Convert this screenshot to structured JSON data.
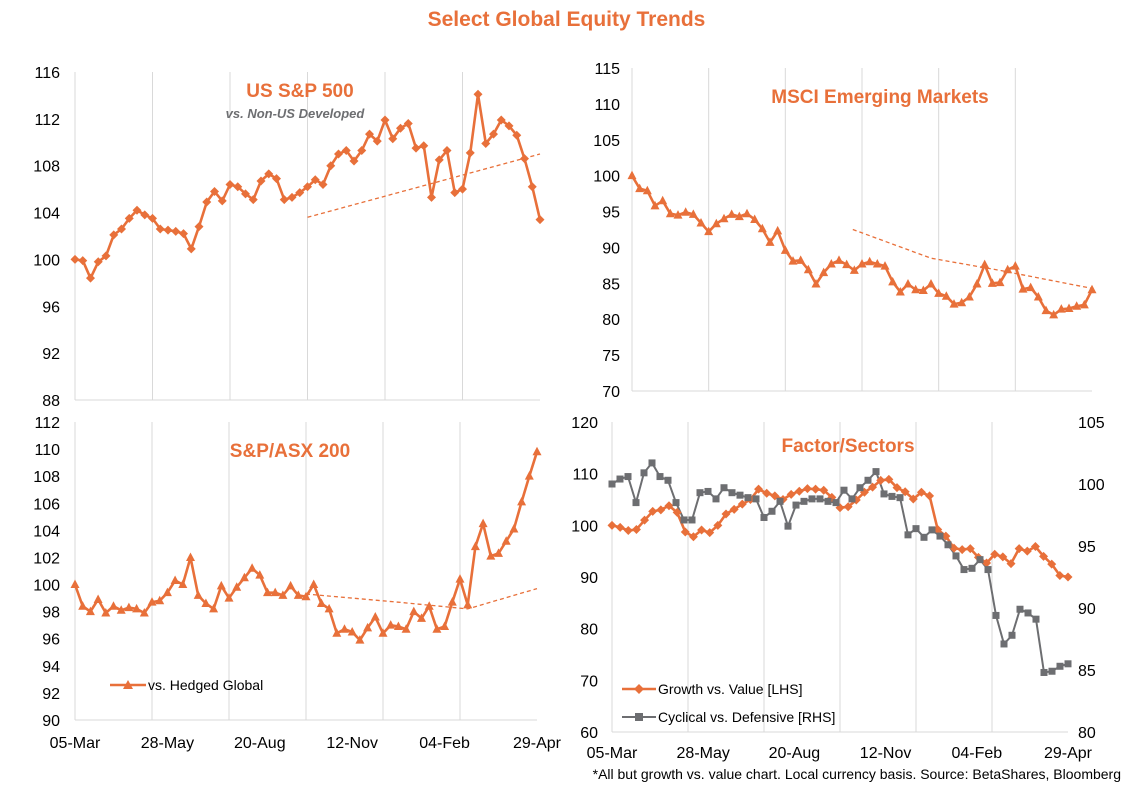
{
  "page": {
    "title": "Select Global Equity Trends",
    "footnote": "*All but growth vs. value chart. Local currency basis. Source: BetaShares, Bloomberg"
  },
  "colors": {
    "orange": "#E8703A",
    "gray": "#6D6E71",
    "grid": "#D9D9D9"
  },
  "chart_data": [
    {
      "id": "sp500",
      "type": "line",
      "title": "US S&P 500",
      "subtitle": "vs. Non-US Developed",
      "ylim": [
        88,
        116
      ],
      "yticks": [
        "88",
        "92",
        "96",
        "100",
        "104",
        "108",
        "112",
        "116"
      ],
      "xlabels": [],
      "series": [
        {
          "name": "",
          "marker": "diamond",
          "color": "#E8703A",
          "values": [
            100.0,
            99.9,
            98.4,
            99.8,
            100.3,
            102.1,
            102.6,
            103.5,
            104.2,
            103.8,
            103.5,
            102.6,
            102.5,
            102.4,
            102.2,
            100.9,
            102.8,
            104.9,
            105.8,
            105.0,
            106.4,
            106.2,
            105.6,
            105.1,
            106.7,
            107.3,
            106.9,
            105.1,
            105.3,
            105.7,
            106.2,
            106.8,
            106.4,
            108.0,
            109.0,
            109.3,
            108.4,
            109.3,
            110.7,
            110.1,
            111.9,
            110.3,
            111.2,
            111.6,
            109.5,
            109.7,
            105.3,
            108.5,
            109.3,
            105.7,
            106.0,
            109.1,
            114.1,
            109.9,
            110.7,
            111.9,
            111.4,
            110.6,
            108.6,
            106.2,
            103.4
          ]
        },
        {
          "name": "",
          "kind": "trend-dashed",
          "x": [
            0.5,
            1.0
          ],
          "values": [
            103.6,
            109.0
          ]
        }
      ]
    },
    {
      "id": "msci-em",
      "type": "line",
      "title": "MSCI Emerging Markets",
      "ylim": [
        70,
        115
      ],
      "yticks": [
        "70",
        "75",
        "80",
        "85",
        "90",
        "95",
        "100",
        "105",
        "110",
        "115"
      ],
      "xlabels": [],
      "series": [
        {
          "name": "",
          "marker": "triangle",
          "color": "#E8703A",
          "values": [
            100.0,
            98.2,
            97.9,
            95.8,
            96.5,
            94.7,
            94.5,
            94.9,
            94.6,
            93.4,
            92.2,
            93.3,
            94.0,
            94.6,
            94.3,
            94.7,
            93.9,
            92.6,
            90.7,
            92.3,
            89.6,
            88.1,
            88.2,
            86.9,
            84.9,
            86.5,
            87.7,
            88.2,
            87.6,
            86.8,
            87.7,
            88.0,
            87.7,
            87.4,
            85.2,
            83.8,
            84.9,
            84.1,
            84.0,
            84.9,
            83.6,
            83.2,
            82.1,
            82.3,
            83.1,
            84.9,
            87.6,
            85.0,
            85.1,
            86.9,
            87.4,
            84.2,
            84.4,
            83.1,
            81.2,
            80.6,
            81.4,
            81.5,
            81.8,
            82.0,
            84.1
          ]
        },
        {
          "name": "",
          "kind": "trend-dashed",
          "x": [
            0.48,
            0.65,
            0.8,
            1.0
          ],
          "values": [
            92.5,
            88.5,
            86.8,
            84.3
          ]
        }
      ]
    },
    {
      "id": "asx200",
      "type": "line",
      "title": "S&P/ASX 200",
      "ylim": [
        90,
        112
      ],
      "yticks": [
        "90",
        "92",
        "94",
        "96",
        "98",
        "100",
        "102",
        "104",
        "106",
        "108",
        "110",
        "112"
      ],
      "xlabels": [
        "05-Mar",
        "28-May",
        "20-Aug",
        "12-Nov",
        "04-Feb",
        "29-Apr"
      ],
      "legend": "vs. Hedged Global",
      "series": [
        {
          "name": "vs. Hedged Global",
          "marker": "triangle",
          "color": "#E8703A",
          "values": [
            100.0,
            98.4,
            98.0,
            98.9,
            97.9,
            98.4,
            98.1,
            98.3,
            98.2,
            97.9,
            98.7,
            98.8,
            99.4,
            100.3,
            100.0,
            102.0,
            99.2,
            98.6,
            98.2,
            99.9,
            99.0,
            99.8,
            100.5,
            101.2,
            100.7,
            99.4,
            99.4,
            99.2,
            99.9,
            99.2,
            99.1,
            100.0,
            98.6,
            98.2,
            96.4,
            96.7,
            96.5,
            95.9,
            96.8,
            97.6,
            96.4,
            97.0,
            96.9,
            96.7,
            98.0,
            97.5,
            98.4,
            96.7,
            96.9,
            98.7,
            100.4,
            98.5,
            102.8,
            104.5,
            102.1,
            102.3,
            103.2,
            104.1,
            106.1,
            108.0,
            109.8
          ]
        },
        {
          "name": "",
          "kind": "trend-dashed",
          "x": [
            0.5,
            0.7,
            0.85,
            1.0
          ],
          "values": [
            99.3,
            98.7,
            98.2,
            99.7
          ]
        }
      ]
    },
    {
      "id": "factors",
      "type": "line",
      "title": "Factor/Sectors",
      "ylim": [
        60,
        120
      ],
      "yticks": [
        "60",
        "70",
        "80",
        "90",
        "100",
        "110",
        "120"
      ],
      "y2lim": [
        80,
        105
      ],
      "y2ticks": [
        "80",
        "85",
        "90",
        "95",
        "100",
        "105"
      ],
      "xlabels": [
        "05-Mar",
        "28-May",
        "20-Aug",
        "12-Nov",
        "04-Feb",
        "29-Apr"
      ],
      "series": [
        {
          "name": "Growth vs. Value [LHS]",
          "marker": "diamond",
          "color": "#E8703A",
          "axis": "left",
          "values": [
            100.0,
            99.6,
            99.0,
            99.2,
            101.0,
            102.7,
            103.0,
            103.8,
            102.5,
            98.7,
            97.8,
            99.1,
            98.6,
            100.0,
            102.2,
            103.1,
            104.1,
            105.0,
            107.0,
            106.2,
            105.7,
            105.0,
            106.0,
            106.6,
            107.1,
            107.0,
            106.8,
            105.4,
            103.4,
            103.6,
            104.9,
            106.4,
            107.4,
            108.7,
            108.9,
            107.3,
            106.5,
            105.1,
            106.4,
            105.7,
            99.2,
            97.9,
            95.6,
            95.3,
            95.5,
            93.8,
            92.7,
            94.4,
            93.9,
            92.6,
            95.5,
            95.0,
            95.9,
            94.0,
            92.5,
            90.3,
            90.0
          ]
        },
        {
          "name": "Cyclical vs. Defensive [RHS]",
          "marker": "square",
          "color": "#6D6E71",
          "axis": "right",
          "values": [
            100.0,
            100.4,
            100.6,
            98.5,
            100.9,
            101.7,
            100.6,
            100.3,
            98.5,
            97.1,
            97.1,
            99.3,
            99.4,
            98.8,
            99.7,
            99.3,
            99.1,
            98.9,
            98.8,
            97.3,
            97.8,
            98.6,
            96.6,
            98.3,
            98.6,
            98.8,
            98.8,
            98.6,
            98.5,
            99.5,
            98.8,
            99.7,
            100.3,
            101.0,
            99.2,
            99.0,
            98.9,
            95.9,
            96.4,
            95.7,
            96.3,
            95.8,
            95.1,
            94.2,
            93.1,
            93.2,
            93.9,
            93.1,
            89.4,
            87.1,
            87.8,
            89.9,
            89.6,
            89.1,
            84.8,
            84.9,
            85.3,
            85.5
          ]
        }
      ]
    }
  ]
}
